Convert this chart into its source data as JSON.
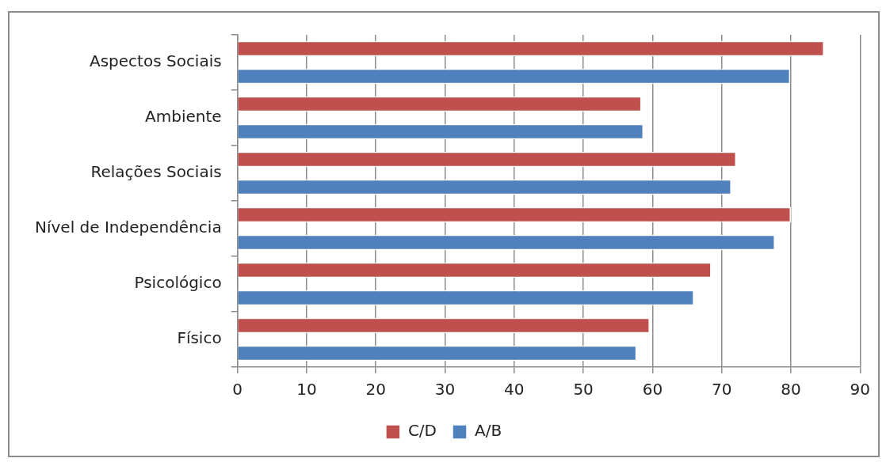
{
  "chart_data": {
    "type": "bar",
    "orientation": "horizontal",
    "categories": [
      "Aspectos Sociais",
      "Ambiente",
      "Relações Sociais",
      "Nível de Independência",
      "Psicológico",
      "Físico"
    ],
    "series": [
      {
        "name": "C/D",
        "color": "#c0504d",
        "values": [
          84.8,
          58.4,
          72.1,
          80,
          68.5,
          59.6
        ]
      },
      {
        "name": "A/B",
        "color": "#4f81bd",
        "values": [
          79.9,
          58.7,
          71.4,
          77.7,
          66,
          57.7
        ]
      }
    ],
    "xlim": [
      0,
      90
    ],
    "xticks": [
      0,
      10,
      20,
      30,
      40,
      50,
      60,
      70,
      80,
      90
    ],
    "grid": "x",
    "legend": "bottom"
  }
}
